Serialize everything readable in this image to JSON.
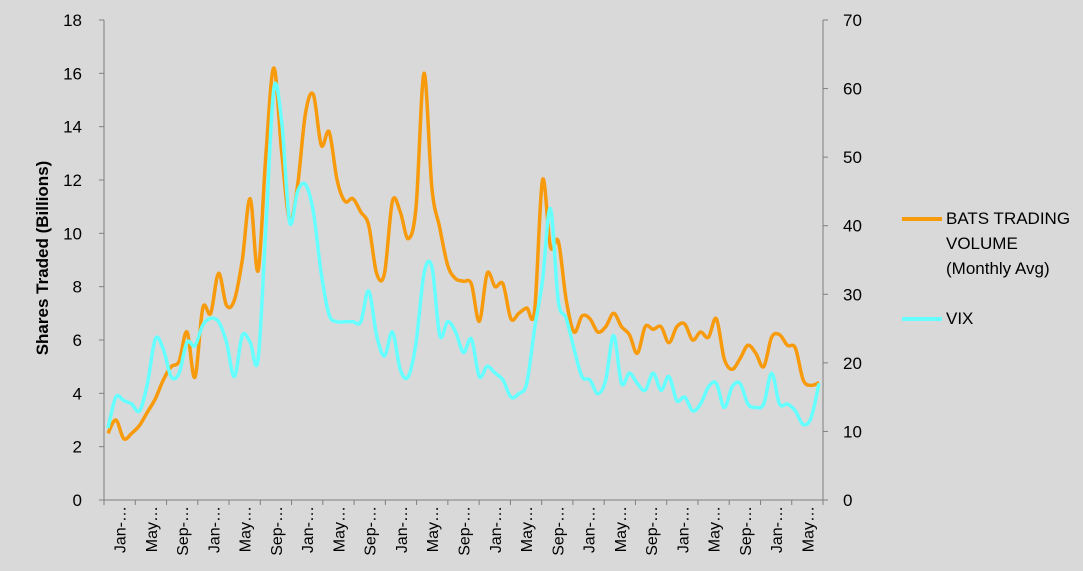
{
  "chart_data": {
    "type": "line",
    "ylabel": "Shares Traded (Billions)",
    "ylim": [
      0,
      18
    ],
    "y2lim": [
      0,
      70
    ],
    "yticks": [
      "0",
      "2",
      "4",
      "6",
      "8",
      "10",
      "12",
      "14",
      "16",
      "18"
    ],
    "y2ticks": [
      "0",
      "10",
      "20",
      "30",
      "40",
      "50",
      "60",
      "70"
    ],
    "xticks": [
      "Jan-…",
      "May…",
      "Sep-…",
      "Jan-…",
      "May…",
      "Sep-…",
      "Jan-…",
      "May…",
      "Sep-…",
      "Jan-…",
      "May…",
      "Sep-…",
      "Jan-…",
      "May…",
      "Sep-…",
      "Jan-…",
      "May…",
      "Sep-…",
      "Jan-…",
      "May…",
      "Sep-…",
      "Jan-…",
      "May…"
    ],
    "grid": false,
    "legend_position": "right",
    "series": [
      {
        "name": "BATS TRADING VOLUME (Monthly Avg)",
        "axis": "left",
        "color": "#f79a0c",
        "values": [
          2.5,
          3.0,
          2.3,
          2.5,
          2.8,
          3.3,
          3.8,
          4.5,
          5.0,
          5.2,
          6.3,
          4.6,
          7.2,
          7.0,
          8.5,
          7.3,
          7.5,
          9.0,
          11.3,
          8.6,
          13.0,
          16.2,
          13.0,
          10.5,
          11.8,
          14.5,
          15.2,
          13.3,
          13.8,
          12.0,
          11.2,
          11.3,
          10.8,
          10.3,
          8.5,
          8.5,
          11.2,
          10.8,
          9.8,
          11.0,
          16.0,
          11.7,
          10.2,
          8.8,
          8.3,
          8.2,
          8.1,
          6.7,
          8.5,
          8.0,
          8.1,
          6.8,
          7.0,
          7.2,
          7.1,
          12.0,
          9.5,
          9.7,
          7.5,
          6.3,
          6.9,
          6.8,
          6.3,
          6.5,
          7.0,
          6.5,
          6.2,
          5.5,
          6.5,
          6.4,
          6.5,
          5.9,
          6.5,
          6.6,
          6.0,
          6.3,
          6.1,
          6.8,
          5.3,
          4.9,
          5.3,
          5.8,
          5.5,
          5.0,
          6.1,
          6.2,
          5.8,
          5.7,
          4.5,
          4.3,
          4.4
        ]
      },
      {
        "name": "VIX",
        "axis": "right",
        "color": "#66ffff",
        "values": [
          10.5,
          15.0,
          14.5,
          14.0,
          13.0,
          17.0,
          23.5,
          22.0,
          18.0,
          18.5,
          23.0,
          22.5,
          25.5,
          26.5,
          26.0,
          23.0,
          18.0,
          24.0,
          23.0,
          20.5,
          40.0,
          60.0,
          55.0,
          40.5,
          45.0,
          46.0,
          42.0,
          33.0,
          27.0,
          26.0,
          26.0,
          26.0,
          26.0,
          30.5,
          24.0,
          21.0,
          24.5,
          19.0,
          18.0,
          23.0,
          33.0,
          34.0,
          24.0,
          26.0,
          24.5,
          21.5,
          23.5,
          18.0,
          19.5,
          18.5,
          17.5,
          15.0,
          15.5,
          17.0,
          25.0,
          32.0,
          42.5,
          29.0,
          26.5,
          22.0,
          18.0,
          17.5,
          15.5,
          17.5,
          24.0,
          17.0,
          18.5,
          17.0,
          16.0,
          18.5,
          16.0,
          18.0,
          14.5,
          15.0,
          13.0,
          14.0,
          16.5,
          17.0,
          13.5,
          16.5,
          17.0,
          14.0,
          13.5,
          14.0,
          18.5,
          14.0,
          14.0,
          13.0,
          11.0,
          12.0,
          17.0
        ]
      }
    ]
  }
}
